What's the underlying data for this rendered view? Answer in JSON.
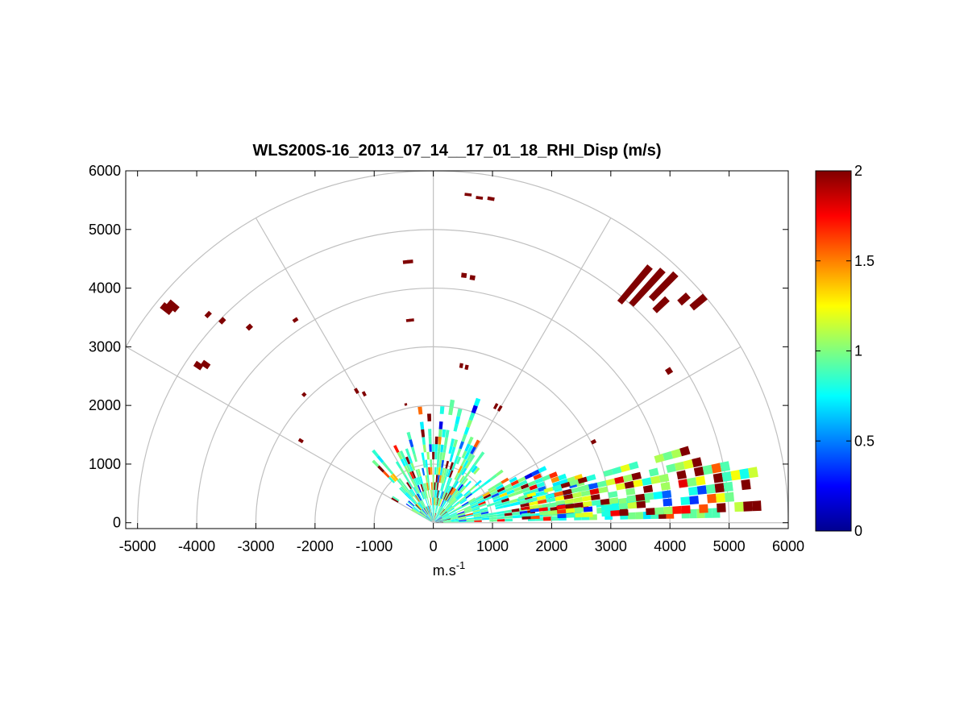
{
  "chart_data": {
    "type": "heatmap",
    "subtype": "polar-rhi-scan",
    "title": "WLS200S-16_2013_07_14__17_01_18_RHI_Disp (m/s)",
    "xlabel": "m.s",
    "xlabel_superscript": "-1",
    "ylabel": "",
    "xlim": [
      -5200,
      6000
    ],
    "ylim": [
      -100,
      6000
    ],
    "xticks": [
      "-5000",
      "-4000",
      "-3000",
      "-2000",
      "-1000",
      "0",
      "1000",
      "2000",
      "3000",
      "4000",
      "5000",
      "6000"
    ],
    "yticks": [
      "0",
      "1000",
      "2000",
      "3000",
      "4000",
      "5000",
      "6000"
    ],
    "polar_grid": {
      "ring_radii": [
        1000,
        2000,
        3000,
        4000,
        5000,
        6000
      ],
      "spoke_angles_deg": [
        0,
        30,
        60,
        90,
        120,
        150
      ],
      "color": "#c0c0c0"
    },
    "colormap": "jet",
    "colorbar": {
      "min": 0,
      "max": 2,
      "ticks": [
        "0",
        "0.5",
        "1",
        "1.5",
        "2"
      ]
    },
    "background": "#ffffff",
    "data_summary": "Wind speed dispersion (m/s) along radial beams; dense near-range cells 0.5–1.2 m/s, low-elevation beams extend to ~5800 m with values 0.7–2, scattered saturated (>=2) high-range cells.",
    "segments": [
      {
        "angle": 84,
        "r1": 5600,
        "r2": 5650,
        "value": 2
      },
      {
        "angle": 82,
        "r1": 5570,
        "r2": 5620,
        "value": 2
      },
      {
        "angle": 80,
        "r1": 5580,
        "r2": 5640,
        "value": 2
      },
      {
        "angle": 96,
        "r1": 4440,
        "r2": 4500,
        "value": 2
      },
      {
        "angle": 95,
        "r1": 4440,
        "r2": 4500,
        "value": 2
      },
      {
        "angle": 83,
        "r1": 4210,
        "r2": 4290,
        "value": 2
      },
      {
        "angle": 81,
        "r1": 4190,
        "r2": 4270,
        "value": 2
      },
      {
        "angle": 97,
        "r1": 3450,
        "r2": 3500,
        "value": 2
      },
      {
        "angle": 96,
        "r1": 3450,
        "r2": 3500,
        "value": 2
      },
      {
        "angle": 80,
        "r1": 2680,
        "r2": 2760,
        "value": 2
      },
      {
        "angle": 78,
        "r1": 2670,
        "r2": 2750,
        "value": 2
      },
      {
        "angle": 62,
        "r1": 2200,
        "r2": 2300,
        "value": 2
      },
      {
        "angle": 60,
        "r1": 2200,
        "r2": 2300,
        "value": 2
      },
      {
        "angle": 50,
        "r1": 4900,
        "r2": 5700,
        "value": 2
      },
      {
        "angle": 48,
        "r1": 5000,
        "r2": 5800,
        "value": 2
      },
      {
        "angle": 46,
        "r1": 5300,
        "r2": 5900,
        "value": 2
      },
      {
        "angle": 44,
        "r1": 5200,
        "r2": 5500,
        "value": 2
      },
      {
        "angle": 42,
        "r1": 5600,
        "r2": 5800,
        "value": 2
      },
      {
        "angle": 40,
        "r1": 5700,
        "r2": 6000,
        "value": 2
      },
      {
        "angle": 33,
        "r1": 4700,
        "r2": 4800,
        "value": 2
      },
      {
        "angle": 27,
        "r1": 3000,
        "r2": 3080,
        "value": 2
      },
      {
        "angle": 141,
        "r1": 5700,
        "r2": 5900,
        "value": 2
      },
      {
        "angle": 140,
        "r1": 5650,
        "r2": 5850,
        "value": 2
      },
      {
        "angle": 137,
        "r1": 5170,
        "r2": 5240,
        "value": 2
      },
      {
        "angle": 136,
        "r1": 4920,
        "r2": 5000,
        "value": 2
      },
      {
        "angle": 133,
        "r1": 4520,
        "r2": 4600,
        "value": 2
      },
      {
        "angle": 146,
        "r1": 4720,
        "r2": 4860,
        "value": 2
      },
      {
        "angle": 145,
        "r1": 4630,
        "r2": 4770,
        "value": 2
      },
      {
        "angle": 124,
        "r1": 4140,
        "r2": 4200,
        "value": 2
      },
      {
        "angle": 135,
        "r1": 3060,
        "r2": 3120,
        "value": 2
      },
      {
        "angle": 148,
        "r1": 2600,
        "r2": 2680,
        "value": 2
      },
      {
        "angle": 120,
        "r1": 2550,
        "r2": 2640,
        "value": 2
      },
      {
        "angle": 118,
        "r1": 2450,
        "r2": 2530,
        "value": 2
      },
      {
        "angle": 103,
        "r1": 2050,
        "r2": 2090,
        "value": 2
      }
    ]
  }
}
